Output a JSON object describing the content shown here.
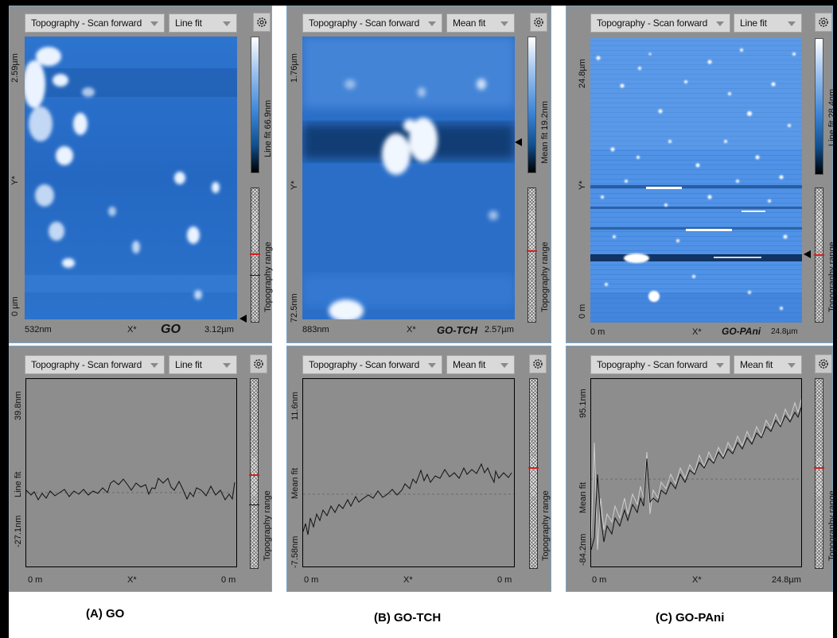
{
  "panels": {
    "a": {
      "top": {
        "dd_mode": "Topography - Scan forward",
        "dd_fit": "Line fit",
        "y_top": "2.59µm",
        "y_axis": "Y*",
        "y_bottom": "0 µm",
        "x_left": "532nm",
        "x_axis": "X*",
        "sample": "GO",
        "x_right": "3.12µm",
        "cbar_label": "Line fit 66.9nm",
        "range_label": "Topography range"
      },
      "bottom": {
        "dd_mode": "Topography - Scan forward",
        "dd_fit": "Line fit",
        "y_top": "39.8nm",
        "y_axis": "Line fit",
        "y_bottom": "-27.1nm",
        "x_left": "0 m",
        "x_axis": "X*",
        "x_right": "0 m",
        "range_label": "Topography range"
      }
    },
    "b": {
      "top": {
        "dd_mode": "Topography - Scan forward",
        "dd_fit": "Mean fit",
        "y_top": "1.76µm",
        "y_axis": "Y*",
        "y_bottom": "72.5nm",
        "x_left": "883nm",
        "x_axis": "X*",
        "sample": "GO-TCH",
        "x_right": "2.57µm",
        "cbar_label": "Mean fit 19.2nm",
        "range_label": "Topography range"
      },
      "bottom": {
        "dd_mode": "Topography - Scan forward",
        "dd_fit": "Mean fit",
        "y_top": "11.6nm",
        "y_axis": "Mean fit",
        "y_bottom": "-7.58nm",
        "x_left": "0 m",
        "x_axis": "X*",
        "x_right": "0 m",
        "range_label": "Topography range"
      }
    },
    "c": {
      "top": {
        "dd_mode": "Topography - Scan forward",
        "dd_fit": "Line fit",
        "y_top": "24.8µm",
        "y_axis": "Y*",
        "y_bottom": "0 m",
        "x_left": "0 m",
        "x_axis": "X*",
        "sample": "GO-PAni",
        "x_right": "24.8µm",
        "cbar_label": "Line fit 28.4nm",
        "range_label": "Topography range"
      },
      "bottom": {
        "dd_mode": "Topography - Scan forward",
        "dd_fit": "Mean fit",
        "y_top": "95.1nm",
        "y_axis": "Mean fit",
        "y_bottom": "-84.2nm",
        "x_left": "0 m",
        "x_axis": "X*",
        "x_right": "24.8µm",
        "range_label": "Topography range"
      }
    }
  },
  "captions": {
    "a": "(A) GO",
    "b": "(B) GO-TCH",
    "c": "(C) GO-PAni"
  },
  "icons": [
    "gear-icon",
    "dropdown-arrow-icon",
    "cursor-marker-icon"
  ],
  "colors": {
    "panel_bg": "#8f8f8f",
    "scan_blue": "#2f6fc4",
    "marker_red": "#d61f1f"
  }
}
